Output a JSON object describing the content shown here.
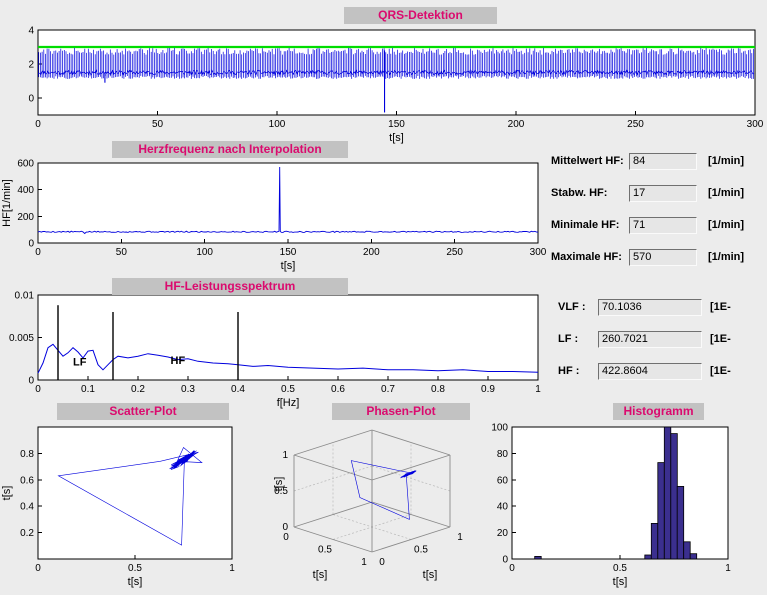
{
  "window": {
    "bg": "#ececec"
  },
  "colors": {
    "accent_pink": "#db0a6e",
    "title_strip_bg": "#c2c2c2",
    "plot_blue": "#0000dd",
    "threshold_green": "#00dd00",
    "annotation_red": "#ff0000",
    "hist_fill": "#3b2f8f",
    "field_bg": "#e6e6e6"
  },
  "titles": {
    "qrs": "QRS-Detektion",
    "hr": "Herzfrequenz nach Interpolation",
    "spectrum": "HF-Leistungsspektrum",
    "scatter": "Scatter-Plot",
    "phase": "Phasen-Plot",
    "histogram": "Histogramm"
  },
  "stats": {
    "rows": [
      {
        "label": "Mittelwert HF:",
        "value": "84",
        "unit": "[1/min]"
      },
      {
        "label": "Stabw. HF:",
        "value": "17",
        "unit": "[1/min]"
      },
      {
        "label": "Minimale HF:",
        "value": "71",
        "unit": "[1/min]"
      },
      {
        "label": "Maximale HF:",
        "value": "570",
        "unit": "[1/min]"
      }
    ]
  },
  "spectral": {
    "rows": [
      {
        "label": "VLF :",
        "value": "70.1036",
        "unit": "[1E-"
      },
      {
        "label": "LF :",
        "value": "260.7021",
        "unit": "[1E-"
      },
      {
        "label": "HF :",
        "value": "422.8604",
        "unit": "[1E-"
      }
    ]
  },
  "chart_data": [
    {
      "id": "qrs",
      "type": "line",
      "title": "QRS-Detektion",
      "xlabel": "t[s]",
      "xlim": [
        0,
        300
      ],
      "ylim": [
        -1,
        4
      ],
      "xticks": [
        0,
        50,
        100,
        150,
        200,
        250,
        300
      ],
      "yticks": [
        0,
        2,
        4
      ],
      "line_color": "#0000dd",
      "threshold": {
        "y": 3,
        "color": "#00dd00"
      },
      "signal": {
        "kind": "ecg-spike-train",
        "beat_interval_s": 0.71,
        "baseline_mv": 1.5,
        "peak_mv": [
          2.55,
          2.95
        ],
        "trough_mv": [
          1.12,
          1.3
        ],
        "artifacts": [
          {
            "t_s": 28,
            "from_mv": 1.5,
            "to_mv": 0.9
          },
          {
            "t_s": 145,
            "from_mv": 2.8,
            "to_mv": -0.85
          }
        ]
      }
    },
    {
      "id": "hr",
      "type": "line",
      "title": "Herzfrequenz nach Interpolation",
      "xlabel": "t[s]",
      "ylabel": "HF[1/min]",
      "xlim": [
        0,
        300
      ],
      "ylim": [
        0,
        600
      ],
      "xticks": [
        0,
        50,
        100,
        150,
        200,
        250,
        300
      ],
      "yticks": [
        0,
        200,
        400,
        600
      ],
      "line_color": "#0000dd",
      "signal": {
        "kind": "noisy-constant",
        "mean_bpm": 84,
        "noise_bpm": 9,
        "dip": {
          "t_s": 28,
          "bpm": 71
        },
        "spike": {
          "t_s": 145,
          "bpm": 570
        }
      }
    },
    {
      "id": "spectrum",
      "type": "line",
      "title": "HF-Leistungsspektrum",
      "xlabel": "f[Hz]",
      "xlim": [
        0,
        1
      ],
      "ylim": [
        0,
        0.01
      ],
      "xticks": [
        0,
        0.1,
        0.2,
        0.3,
        0.4,
        0.5,
        0.6,
        0.7,
        0.8,
        0.9,
        1
      ],
      "yticks": [
        0,
        0.005,
        0.01
      ],
      "line_color": "#0000dd",
      "points": [
        [
          0,
          0.0008
        ],
        [
          0.01,
          0.002
        ],
        [
          0.02,
          0.0038
        ],
        [
          0.03,
          0.0042
        ],
        [
          0.04,
          0.0035
        ],
        [
          0.05,
          0.0028
        ],
        [
          0.06,
          0.0032
        ],
        [
          0.07,
          0.0038
        ],
        [
          0.08,
          0.0033
        ],
        [
          0.09,
          0.0026
        ],
        [
          0.1,
          0.0034
        ],
        [
          0.11,
          0.0035
        ],
        [
          0.12,
          0.0018
        ],
        [
          0.13,
          0.0012
        ],
        [
          0.14,
          0.0018
        ],
        [
          0.15,
          0.0024
        ],
        [
          0.16,
          0.0028
        ],
        [
          0.18,
          0.0026
        ],
        [
          0.2,
          0.0028
        ],
        [
          0.22,
          0.0031
        ],
        [
          0.24,
          0.0029
        ],
        [
          0.26,
          0.0027
        ],
        [
          0.28,
          0.0024
        ],
        [
          0.3,
          0.0025
        ],
        [
          0.32,
          0.0022
        ],
        [
          0.35,
          0.002
        ],
        [
          0.38,
          0.0019
        ],
        [
          0.4,
          0.0018
        ],
        [
          0.43,
          0.0016
        ],
        [
          0.46,
          0.0017
        ],
        [
          0.5,
          0.0015
        ],
        [
          0.55,
          0.0014
        ],
        [
          0.6,
          0.0013
        ],
        [
          0.65,
          0.0014
        ],
        [
          0.7,
          0.0012
        ],
        [
          0.75,
          0.0012
        ],
        [
          0.8,
          0.0011
        ],
        [
          0.85,
          0.0012
        ],
        [
          0.9,
          0.001
        ],
        [
          0.95,
          0.001
        ],
        [
          1,
          0.0009
        ]
      ],
      "band_markers": [
        {
          "f_hz": 0.04,
          "top": 0.0088
        },
        {
          "f_hz": 0.15,
          "top": 0.008
        },
        {
          "f_hz": 0.4,
          "top": 0.008
        }
      ],
      "annotations": [
        {
          "text": "LF",
          "x": 0.07,
          "y": 0.0017,
          "color": "#ff0000"
        },
        {
          "text": "HF",
          "x": 0.265,
          "y": 0.0019,
          "color": "#ff0000"
        }
      ]
    },
    {
      "id": "scatter",
      "type": "scatter",
      "title": "Scatter-Plot",
      "xlabel": "t[s]",
      "ylabel": "t[s]",
      "xlim": [
        0,
        1
      ],
      "ylim": [
        0,
        1
      ],
      "xticks": [
        0,
        0.5,
        1
      ],
      "yticks": [
        0.2,
        0.4,
        0.6,
        0.8
      ],
      "line_color": "#0000dd",
      "cluster": {
        "center": [
          0.75,
          0.75
        ],
        "spread": 0.09,
        "n": 240
      },
      "excursions": [
        [
          0.75,
          0.845
        ],
        [
          0.845,
          0.73
        ],
        [
          0.74,
          0.105
        ],
        [
          0.105,
          0.63
        ],
        [
          0.63,
          0.74
        ]
      ]
    },
    {
      "id": "phase",
      "type": "scatter3d",
      "title": "Phasen-Plot",
      "xlabel": "t[s]",
      "ylabel": "t[s]",
      "zlabel": "t[s]",
      "xlim": [
        0,
        1
      ],
      "ylim": [
        0,
        1
      ],
      "zlim": [
        0,
        1
      ],
      "ticks": [
        0,
        0.5,
        1
      ],
      "line_color": "#0000dd",
      "cluster": {
        "center": [
          0.74,
          0.74,
          0.74
        ],
        "spread": 0.07,
        "n": 200
      },
      "excursions": [
        [
          0.74,
          0.74,
          0.105
        ],
        [
          0.74,
          0.105,
          0.63
        ],
        [
          0.105,
          0.63,
          0.74
        ],
        [
          0.63,
          0.74,
          0.74
        ]
      ]
    },
    {
      "id": "histogram",
      "type": "bar",
      "title": "Histogramm",
      "xlabel": "t[s]",
      "xlim": [
        0,
        1
      ],
      "ylim": [
        0,
        100
      ],
      "xticks": [
        0,
        0.5,
        1
      ],
      "yticks": [
        0,
        20,
        40,
        60,
        80,
        100
      ],
      "bar_color": "#3b2f8f",
      "bin_width": 0.03,
      "bins": [
        [
          0.12,
          2
        ],
        [
          0.63,
          3
        ],
        [
          0.66,
          27
        ],
        [
          0.69,
          73
        ],
        [
          0.72,
          100
        ],
        [
          0.75,
          95
        ],
        [
          0.78,
          55
        ],
        [
          0.81,
          13
        ],
        [
          0.84,
          4
        ]
      ]
    }
  ]
}
